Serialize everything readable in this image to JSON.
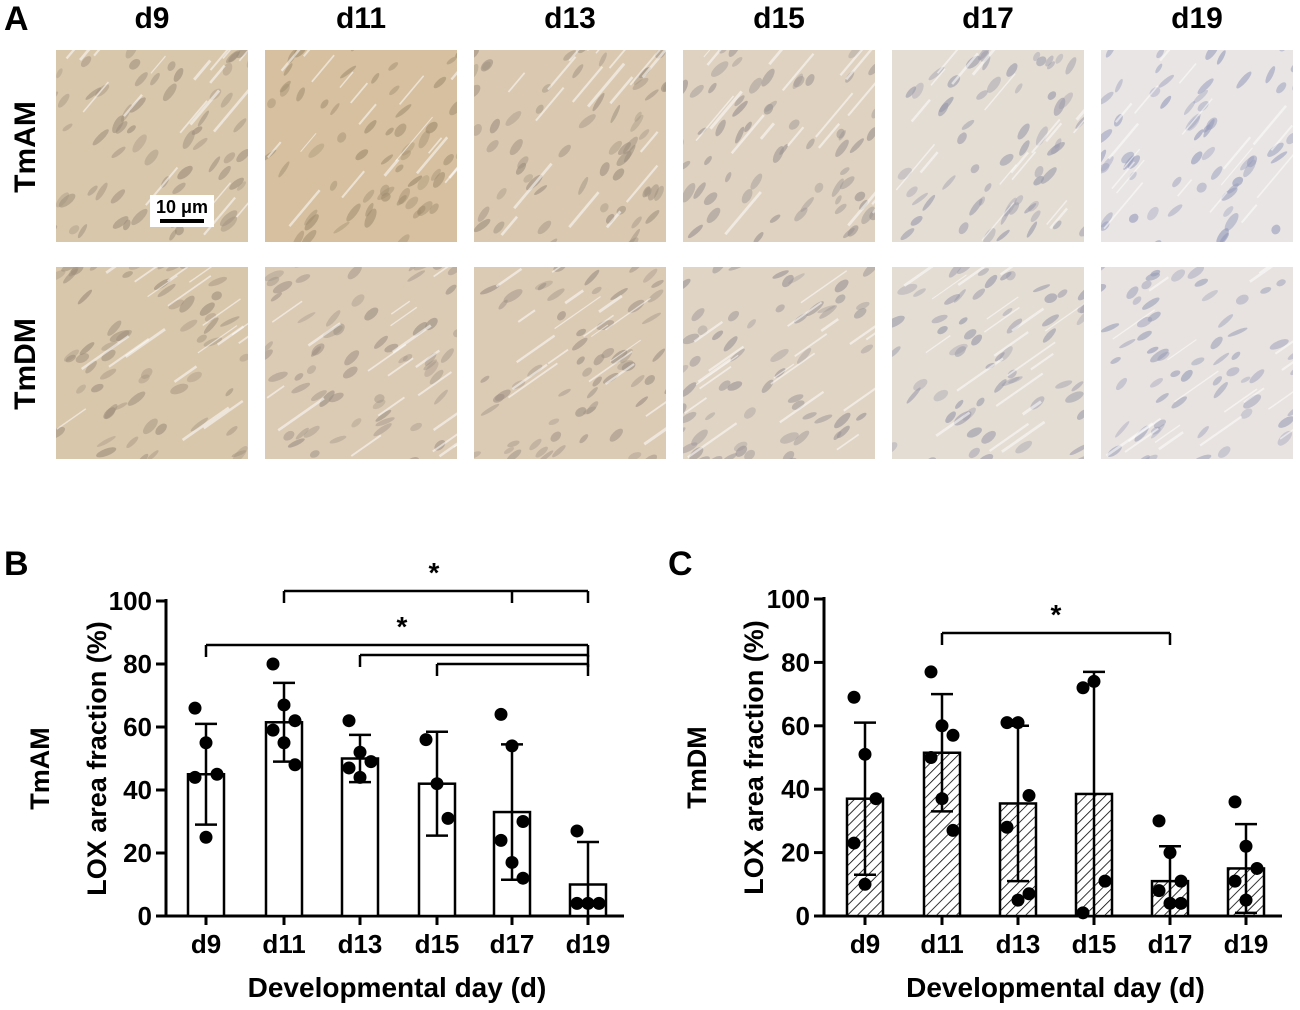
{
  "panel_a": {
    "letter": "A",
    "columns": [
      "d9",
      "d11",
      "d13",
      "d15",
      "d17",
      "d19"
    ],
    "rows": [
      "TmAM",
      "TmDM"
    ],
    "scale_bar": "10 μm",
    "stain_intensity": [
      [
        0.85,
        1.0,
        0.8,
        0.6,
        0.35,
        0.15
      ],
      [
        0.85,
        0.75,
        0.75,
        0.55,
        0.35,
        0.2
      ]
    ]
  },
  "chart_data": [
    {
      "panel": "B",
      "type": "bar",
      "categories": [
        "d9",
        "d11",
        "d13",
        "d15",
        "d17",
        "d19"
      ],
      "values": [
        45,
        61.5,
        50,
        42,
        33,
        10
      ],
      "error": [
        16,
        12.5,
        7.5,
        16.5,
        21.5,
        13.5
      ],
      "points": [
        [
          66,
          55,
          45,
          44,
          25
        ],
        [
          80,
          67,
          62,
          59,
          55,
          48
        ],
        [
          62,
          52,
          49,
          47,
          44
        ],
        [
          56,
          42,
          31
        ],
        [
          64,
          54,
          30,
          24,
          17,
          12
        ],
        [
          27,
          4,
          4,
          4
        ]
      ],
      "fill": "open",
      "xlabel": "Developmental day (d)",
      "ylabel": [
        "TmAM",
        "LOX area fraction (%)"
      ],
      "yticks": [
        0,
        20,
        40,
        60,
        80,
        100
      ],
      "ylim": [
        0,
        100
      ],
      "significance": [
        {
          "from": "d11",
          "to": [
            "d17",
            "d19"
          ],
          "label": "*"
        },
        {
          "from": "d9",
          "to": [
            "d19"
          ],
          "label": "*"
        },
        {
          "from": "d13",
          "to": [
            "d19"
          ],
          "label": ""
        },
        {
          "from": "d15",
          "to": [
            "d19"
          ],
          "label": ""
        }
      ]
    },
    {
      "panel": "C",
      "type": "bar",
      "categories": [
        "d9",
        "d11",
        "d13",
        "d15",
        "d17",
        "d19"
      ],
      "values": [
        37,
        51.5,
        35.5,
        38.5,
        11,
        15
      ],
      "error": [
        24,
        18.5,
        24.5,
        38.5,
        11,
        14
      ],
      "points": [
        [
          69,
          51,
          37,
          23,
          10
        ],
        [
          77,
          60,
          57,
          50,
          37,
          27
        ],
        [
          61,
          61,
          38,
          28,
          5,
          7
        ],
        [
          72,
          74,
          11,
          1
        ],
        [
          30,
          20,
          11,
          8,
          4,
          4
        ],
        [
          36,
          22,
          15,
          11,
          5
        ]
      ],
      "fill": "hatched",
      "xlabel": "Developmental day (d)",
      "ylabel": [
        "TmDM",
        "LOX area fraction (%)"
      ],
      "yticks": [
        0,
        20,
        40,
        60,
        80,
        100
      ],
      "ylim": [
        0,
        100
      ],
      "significance": [
        {
          "from": "d11",
          "to": [
            "d17"
          ],
          "label": "*"
        }
      ]
    }
  ]
}
